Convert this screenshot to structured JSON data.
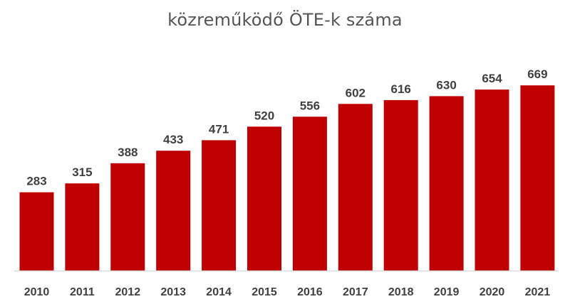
{
  "chart_data": {
    "type": "bar",
    "title": "közreműködő ÖTE-k száma",
    "xlabel": "",
    "ylabel": "",
    "categories": [
      "2010",
      "2011",
      "2012",
      "2013",
      "2014",
      "2015",
      "2016",
      "2017",
      "2018",
      "2019",
      "2020",
      "2021"
    ],
    "values": [
      283,
      315,
      388,
      433,
      471,
      520,
      556,
      602,
      616,
      630,
      654,
      669
    ],
    "ylim": [
      0,
      700
    ],
    "grid": false,
    "legend": "none",
    "data_labels": true,
    "colors": {
      "bar": "#C00000",
      "axis": "#D9D9D9",
      "text": "#404040",
      "title": "#555555"
    }
  }
}
